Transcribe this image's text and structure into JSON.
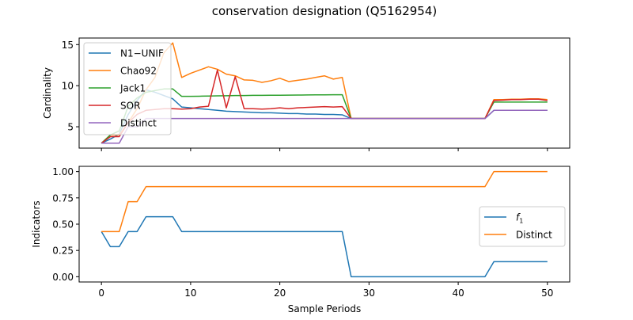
{
  "figure": {
    "title": "conservation designation (Q5162954)"
  },
  "chart_data": [
    {
      "type": "line",
      "ylabel": "Cardinality",
      "xlabel": "",
      "xlim": [
        -2.5,
        52.5
      ],
      "ylim": [
        2.4,
        15.8
      ],
      "xticks": [
        0,
        10,
        20,
        30,
        40,
        50
      ],
      "yticks": [
        5,
        10,
        15
      ],
      "x_ticklabels_visible": false,
      "legend_loc": "upper-left",
      "series": [
        {
          "name": "N1−UNIF",
          "color": "#1f77b4",
          "x": [
            0,
            1,
            2,
            3,
            4,
            5,
            6,
            7,
            8,
            9,
            10,
            11,
            12,
            13,
            14,
            15,
            16,
            17,
            18,
            19,
            20,
            21,
            22,
            23,
            24,
            25,
            26,
            27,
            28,
            29,
            30,
            31,
            32,
            33,
            34,
            35,
            36,
            37,
            38,
            39,
            40,
            41,
            42,
            43,
            44,
            45,
            46,
            47,
            48,
            49,
            50
          ],
          "y": [
            3,
            3.5,
            4.1,
            6.5,
            8.2,
            9.5,
            9.2,
            8.8,
            8.4,
            7.4,
            7.3,
            7.2,
            7.1,
            7.0,
            6.9,
            6.85,
            6.8,
            6.75,
            6.7,
            6.7,
            6.65,
            6.6,
            6.6,
            6.55,
            6.55,
            6.5,
            6.5,
            6.45,
            6,
            6,
            6,
            6,
            6,
            6,
            6,
            6,
            6,
            6,
            6,
            6,
            6,
            6,
            6,
            6,
            7,
            7,
            7,
            7,
            7,
            7,
            7
          ]
        },
        {
          "name": "Chao92",
          "color": "#ff7f0e",
          "x": [
            0,
            1,
            2,
            3,
            4,
            5,
            6,
            7,
            8,
            9,
            10,
            11,
            12,
            13,
            14,
            15,
            16,
            17,
            18,
            19,
            20,
            21,
            22,
            23,
            24,
            25,
            26,
            27,
            28,
            29,
            30,
            31,
            32,
            33,
            34,
            35,
            36,
            37,
            38,
            39,
            40,
            41,
            42,
            43,
            44,
            45,
            46,
            47,
            48,
            49,
            50
          ],
          "y": [
            3,
            4,
            4,
            5.5,
            7.2,
            9.5,
            11,
            14,
            15.2,
            11,
            11.5,
            11.9,
            12.3,
            12,
            11.4,
            11.2,
            10.7,
            10.65,
            10.4,
            10.6,
            10.9,
            10.5,
            10.65,
            10.8,
            11,
            11.2,
            10.8,
            11,
            6,
            6,
            6,
            6,
            6,
            6,
            6,
            6,
            6,
            6,
            6,
            6,
            6,
            6,
            6,
            6,
            8.3,
            8.3,
            8.35,
            8.35,
            8.4,
            8.4,
            8.3
          ]
        },
        {
          "name": "Jack1",
          "color": "#2ca02c",
          "x": [
            0,
            1,
            2,
            3,
            4,
            5,
            6,
            7,
            8,
            9,
            10,
            11,
            12,
            13,
            14,
            15,
            16,
            17,
            18,
            19,
            20,
            21,
            22,
            23,
            24,
            25,
            26,
            27,
            28,
            29,
            30,
            31,
            32,
            33,
            34,
            35,
            36,
            37,
            38,
            39,
            40,
            41,
            42,
            43,
            44,
            45,
            46,
            47,
            48,
            49,
            50
          ],
          "y": [
            3,
            4,
            4.5,
            7.5,
            8.5,
            9.2,
            9.4,
            9.6,
            9.6,
            8.7,
            8.7,
            8.72,
            8.74,
            8.76,
            8.78,
            8.8,
            8.8,
            8.82,
            8.82,
            8.84,
            8.84,
            8.85,
            8.86,
            8.87,
            8.88,
            8.88,
            8.89,
            8.9,
            6,
            6,
            6,
            6,
            6,
            6,
            6,
            6,
            6,
            6,
            6,
            6,
            6,
            6,
            6,
            6,
            8,
            8,
            8,
            8,
            8,
            8,
            8
          ]
        },
        {
          "name": "SOR",
          "color": "#d62728",
          "x": [
            0,
            1,
            2,
            3,
            4,
            5,
            6,
            7,
            8,
            9,
            10,
            11,
            12,
            13,
            14,
            15,
            16,
            17,
            18,
            19,
            20,
            21,
            22,
            23,
            24,
            25,
            26,
            27,
            28,
            29,
            30,
            31,
            32,
            33,
            34,
            35,
            36,
            37,
            38,
            39,
            40,
            41,
            42,
            43,
            44,
            45,
            46,
            47,
            48,
            49,
            50
          ],
          "y": [
            3,
            3.8,
            3.8,
            5.5,
            6.5,
            7.0,
            7.1,
            7.2,
            7.2,
            7.15,
            7.2,
            7.4,
            7.5,
            11.9,
            7.3,
            11.1,
            7.2,
            7.2,
            7.15,
            7.2,
            7.3,
            7.2,
            7.3,
            7.35,
            7.4,
            7.45,
            7.4,
            7.45,
            6,
            6,
            6,
            6,
            6,
            6,
            6,
            6,
            6,
            6,
            6,
            6,
            6,
            6,
            6,
            6,
            8.2,
            8.25,
            8.3,
            8.3,
            8.35,
            8.35,
            8.2
          ]
        },
        {
          "name": "Distinct",
          "color": "#9467bd",
          "x": [
            0,
            1,
            2,
            3,
            4,
            5,
            6,
            7,
            8,
            9,
            10,
            11,
            12,
            13,
            14,
            15,
            16,
            17,
            18,
            19,
            20,
            21,
            22,
            23,
            24,
            25,
            26,
            27,
            28,
            29,
            30,
            31,
            32,
            33,
            34,
            35,
            36,
            37,
            38,
            39,
            40,
            41,
            42,
            43,
            44,
            45,
            46,
            47,
            48,
            49,
            50
          ],
          "y": [
            3,
            3,
            3,
            5,
            5,
            6,
            6,
            6,
            6,
            6,
            6,
            6,
            6,
            6,
            6,
            6,
            6,
            6,
            6,
            6,
            6,
            6,
            6,
            6,
            6,
            6,
            6,
            6,
            6,
            6,
            6,
            6,
            6,
            6,
            6,
            6,
            6,
            6,
            6,
            6,
            6,
            6,
            6,
            6,
            7,
            7,
            7,
            7,
            7,
            7,
            7
          ]
        }
      ]
    },
    {
      "type": "line",
      "ylabel": "Indicators",
      "xlabel": "Sample Periods",
      "xlim": [
        -2.5,
        52.5
      ],
      "ylim": [
        -0.05,
        1.05
      ],
      "xticks": [
        0,
        10,
        20,
        30,
        40,
        50
      ],
      "yticks": [
        0.0,
        0.25,
        0.5,
        0.75,
        1.0
      ],
      "ytick_labels": [
        "0.00",
        "0.25",
        "0.50",
        "0.75",
        "1.00"
      ],
      "x_ticklabels_visible": true,
      "legend_loc": "center-right",
      "series": [
        {
          "name": "f",
          "name_subscript": "1",
          "color": "#1f77b4",
          "x": [
            0,
            1,
            2,
            3,
            4,
            5,
            6,
            7,
            8,
            9,
            10,
            11,
            12,
            13,
            14,
            15,
            16,
            17,
            18,
            19,
            20,
            21,
            22,
            23,
            24,
            25,
            26,
            27,
            28,
            29,
            30,
            31,
            32,
            33,
            34,
            35,
            36,
            37,
            38,
            39,
            40,
            41,
            42,
            43,
            44,
            45,
            46,
            47,
            48,
            49,
            50
          ],
          "y": [
            0.429,
            0.286,
            0.286,
            0.429,
            0.429,
            0.571,
            0.571,
            0.571,
            0.571,
            0.429,
            0.429,
            0.429,
            0.429,
            0.429,
            0.429,
            0.429,
            0.429,
            0.429,
            0.429,
            0.429,
            0.429,
            0.429,
            0.429,
            0.429,
            0.429,
            0.429,
            0.429,
            0.429,
            0,
            0,
            0,
            0,
            0,
            0,
            0,
            0,
            0,
            0,
            0,
            0,
            0,
            0,
            0,
            0,
            0.143,
            0.143,
            0.143,
            0.143,
            0.143,
            0.143,
            0.143
          ]
        },
        {
          "name": "Distinct",
          "color": "#ff7f0e",
          "x": [
            0,
            1,
            2,
            3,
            4,
            5,
            6,
            7,
            8,
            9,
            10,
            11,
            12,
            13,
            14,
            15,
            16,
            17,
            18,
            19,
            20,
            21,
            22,
            23,
            24,
            25,
            26,
            27,
            28,
            29,
            30,
            31,
            32,
            33,
            34,
            35,
            36,
            37,
            38,
            39,
            40,
            41,
            42,
            43,
            44,
            45,
            46,
            47,
            48,
            49,
            50
          ],
          "y": [
            0.429,
            0.429,
            0.429,
            0.714,
            0.714,
            0.857,
            0.857,
            0.857,
            0.857,
            0.857,
            0.857,
            0.857,
            0.857,
            0.857,
            0.857,
            0.857,
            0.857,
            0.857,
            0.857,
            0.857,
            0.857,
            0.857,
            0.857,
            0.857,
            0.857,
            0.857,
            0.857,
            0.857,
            0.857,
            0.857,
            0.857,
            0.857,
            0.857,
            0.857,
            0.857,
            0.857,
            0.857,
            0.857,
            0.857,
            0.857,
            0.857,
            0.857,
            0.857,
            0.857,
            1,
            1,
            1,
            1,
            1,
            1,
            1
          ]
        }
      ]
    }
  ]
}
